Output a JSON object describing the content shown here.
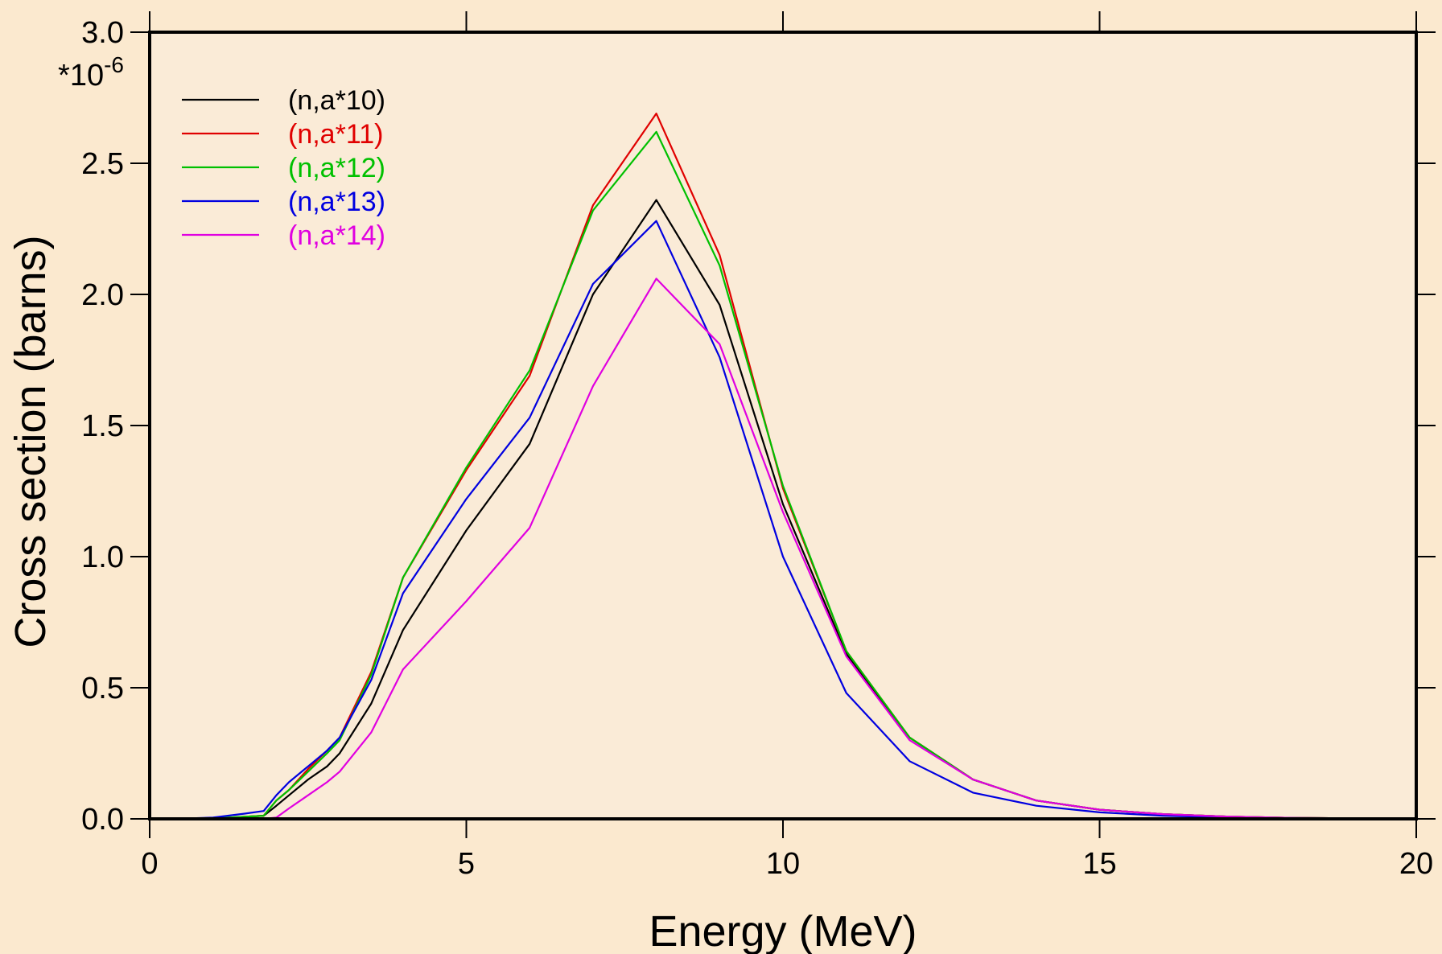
{
  "colors": {
    "page_background": "#FBE9CF",
    "plot_background": "#FAEBD7",
    "axis": "#000000"
  },
  "chart_data": {
    "type": "line",
    "xlabel": "Energy (MeV)",
    "ylabel": "Cross section (barns)",
    "y_multiplier_base": "*10",
    "y_multiplier_exp": "-6",
    "xlim": [
      0,
      20
    ],
    "ylim": [
      0,
      3.0
    ],
    "x_ticks": [
      0,
      5,
      10,
      15,
      20
    ],
    "x_tick_labels": [
      "0",
      "5",
      "10",
      "15",
      "20"
    ],
    "y_ticks": [
      0,
      0.5,
      1.0,
      1.5,
      2.0,
      2.5,
      3.0
    ],
    "y_tick_labels": [
      "0.0",
      "0.5",
      "1.0",
      "1.5",
      "2.0",
      "2.5",
      "3.0"
    ],
    "grid": false,
    "legend_position": "top-left",
    "x": [
      0,
      0.5,
      1.0,
      1.5,
      1.8,
      2.0,
      2.2,
      2.5,
      2.8,
      3.0,
      3.5,
      4.0,
      5,
      6,
      7,
      8,
      9,
      10,
      11,
      12,
      13,
      14,
      15,
      16,
      17,
      18,
      19,
      20
    ],
    "series": [
      {
        "name": "(n,a*10)",
        "color": "#000000",
        "values": [
          0,
          0,
          0.002,
          0.008,
          0.012,
          0.05,
          0.09,
          0.15,
          0.2,
          0.25,
          0.44,
          0.72,
          1.1,
          1.43,
          2.0,
          2.36,
          1.96,
          1.2,
          0.63,
          0.31,
          0.15,
          0.07,
          0.035,
          0.018,
          0.009,
          0.004,
          0.002,
          0.001
        ]
      },
      {
        "name": "(n,a*11)",
        "color": "#E00000",
        "values": [
          0,
          0,
          0.002,
          0.008,
          0.012,
          0.07,
          0.11,
          0.19,
          0.26,
          0.31,
          0.56,
          0.92,
          1.33,
          1.69,
          2.34,
          2.69,
          2.15,
          1.26,
          0.64,
          0.31,
          0.15,
          0.07,
          0.035,
          0.018,
          0.009,
          0.004,
          0.002,
          0.001
        ]
      },
      {
        "name": "(n,a*12)",
        "color": "#00C000",
        "values": [
          0,
          0,
          0.002,
          0.008,
          0.012,
          0.07,
          0.11,
          0.18,
          0.25,
          0.3,
          0.55,
          0.92,
          1.34,
          1.71,
          2.32,
          2.62,
          2.11,
          1.27,
          0.64,
          0.31,
          0.15,
          0.07,
          0.035,
          0.018,
          0.009,
          0.004,
          0.002,
          0.001
        ]
      },
      {
        "name": "(n,a*13)",
        "color": "#0000E0",
        "values": [
          0,
          0.001,
          0.005,
          0.02,
          0.03,
          0.09,
          0.14,
          0.2,
          0.26,
          0.31,
          0.53,
          0.86,
          1.22,
          1.53,
          2.04,
          2.28,
          1.76,
          1.0,
          0.48,
          0.22,
          0.1,
          0.05,
          0.025,
          0.012,
          0.006,
          0.003,
          0.001,
          0.0005
        ]
      },
      {
        "name": "(n,a*14)",
        "color": "#E000E0",
        "values": [
          0,
          0,
          0,
          0,
          0,
          0.005,
          0.04,
          0.09,
          0.14,
          0.18,
          0.33,
          0.57,
          0.83,
          1.11,
          1.65,
          2.06,
          1.81,
          1.17,
          0.62,
          0.3,
          0.15,
          0.07,
          0.035,
          0.018,
          0.009,
          0.004,
          0.002,
          0.001
        ]
      }
    ]
  }
}
